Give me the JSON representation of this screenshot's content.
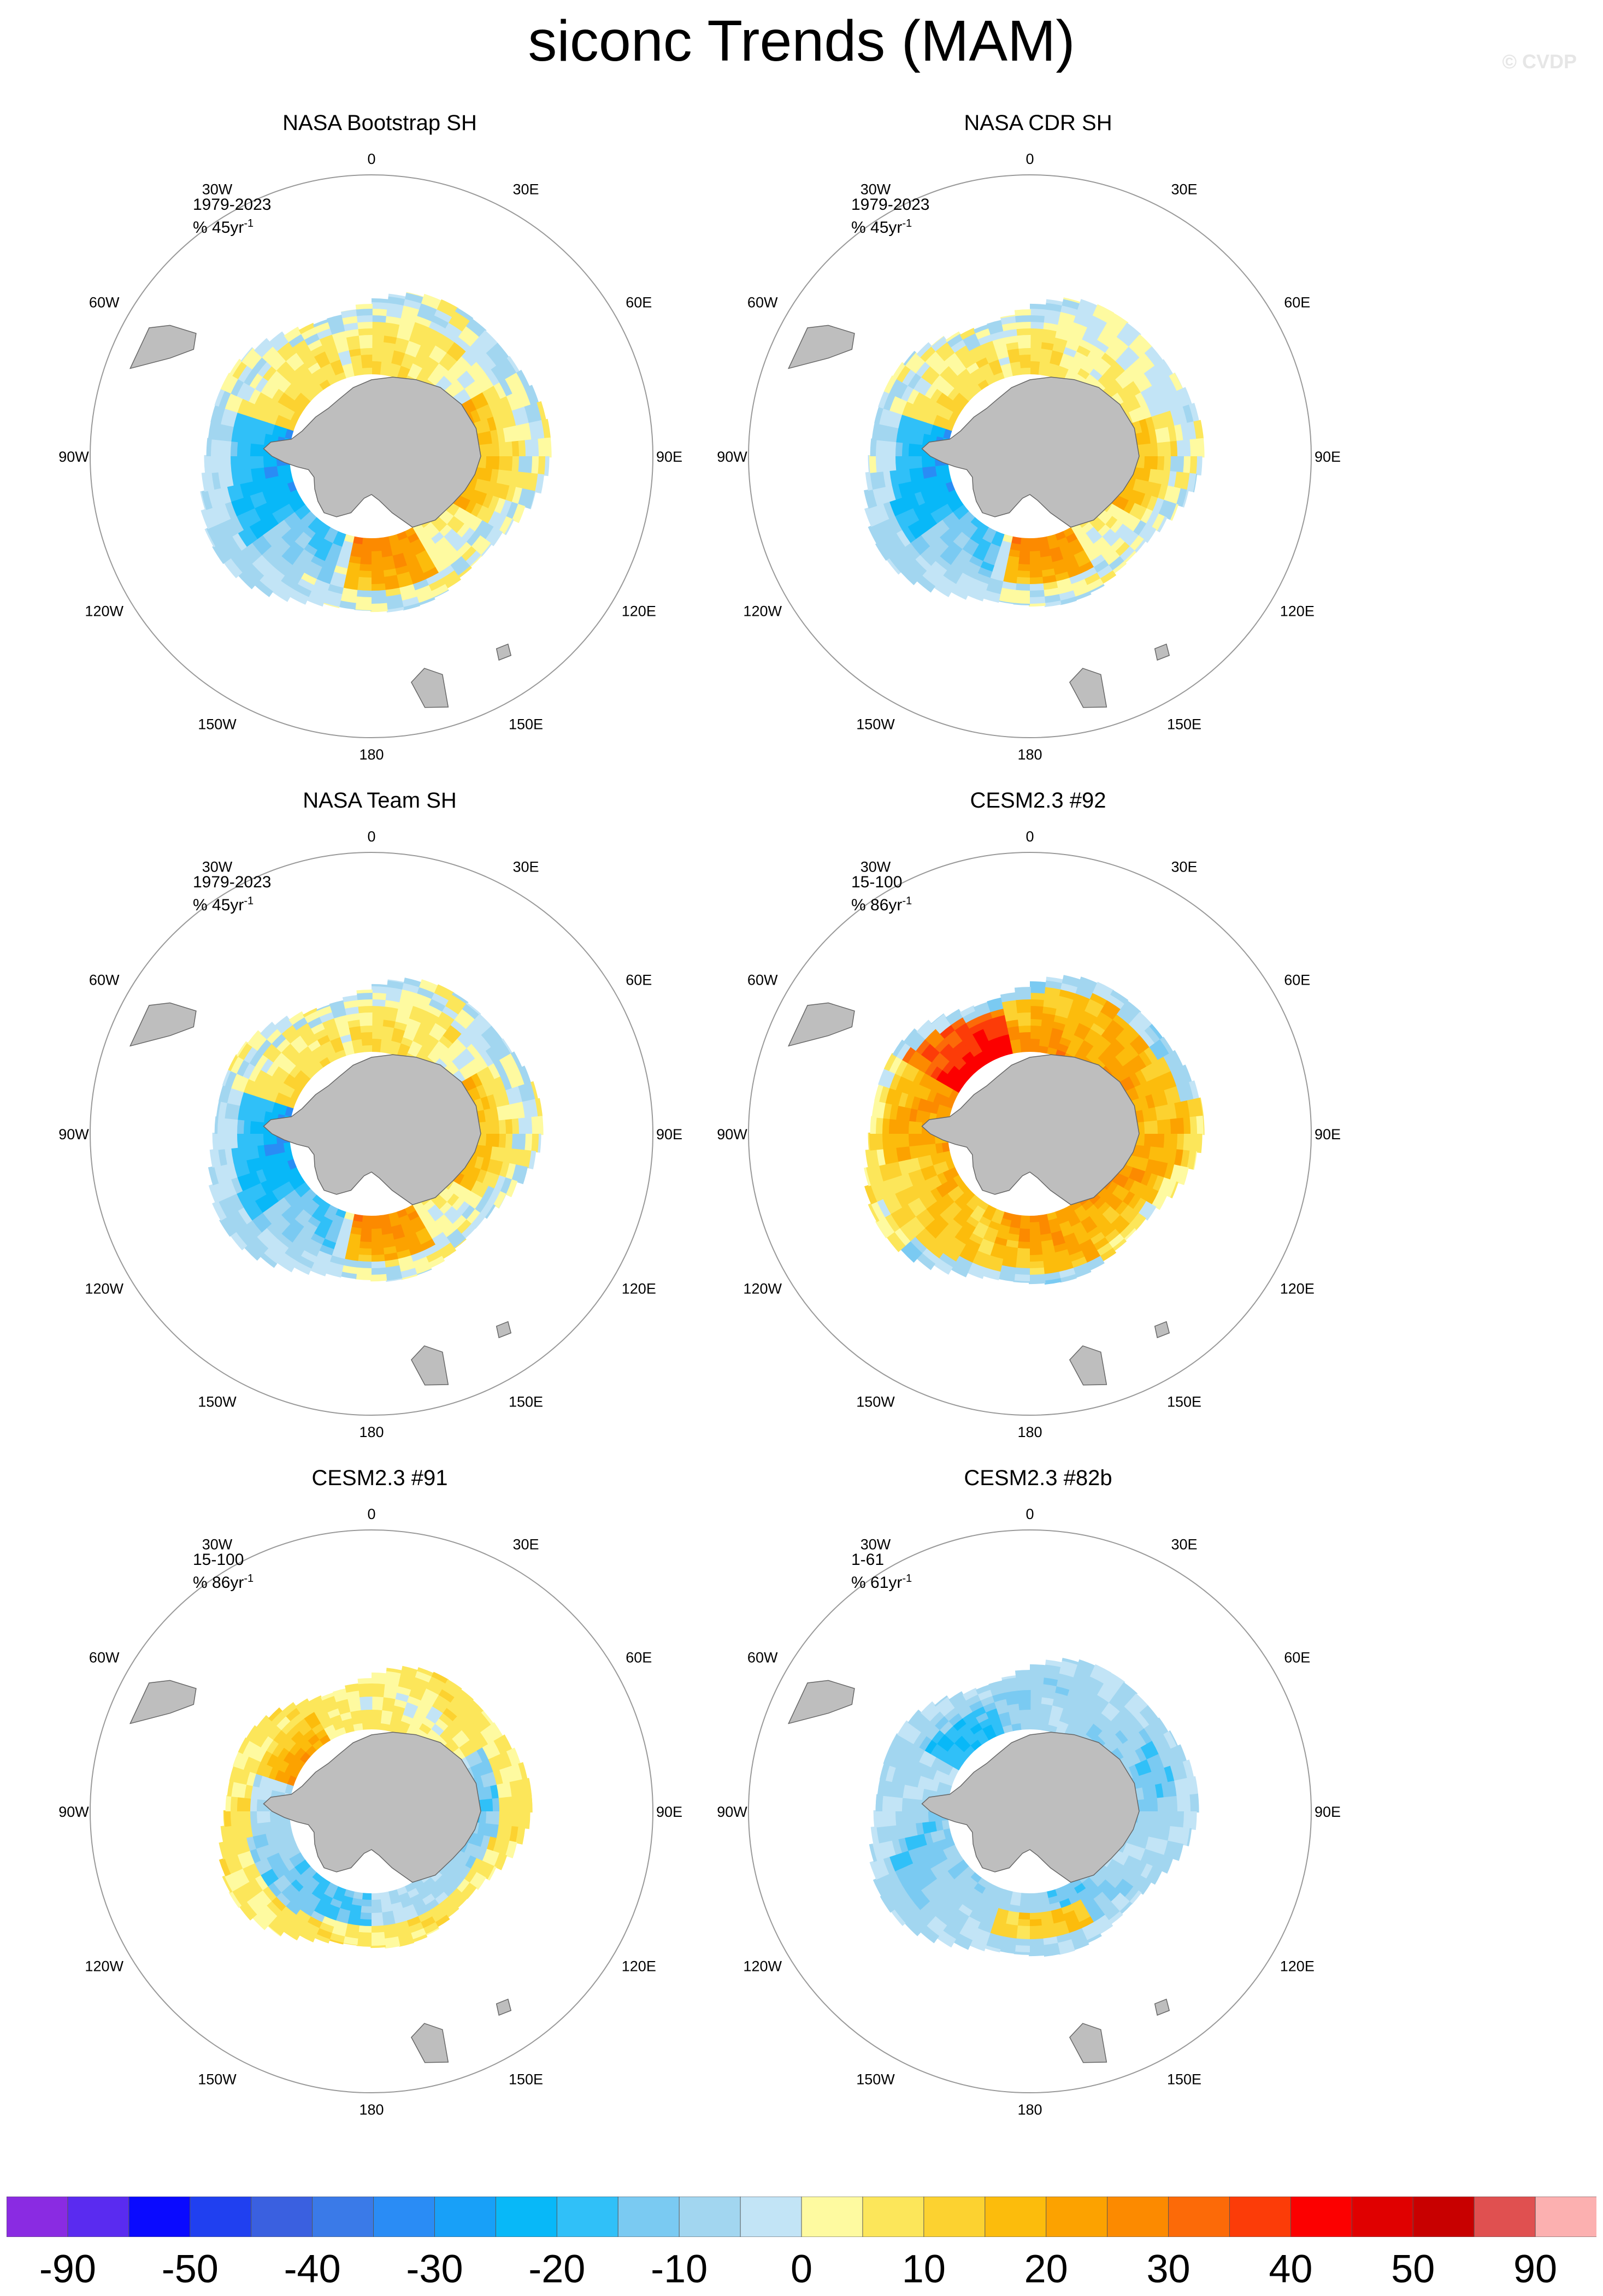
{
  "title": "siconc Trends (MAM)",
  "watermark": "© CVDP",
  "lon_labels": [
    "0",
    "30E",
    "60E",
    "90E",
    "120E",
    "150E",
    "180",
    "150W",
    "120W",
    "90W",
    "60W",
    "30W"
  ],
  "panels": [
    {
      "title": "NASA Bootstrap SH",
      "period": "1979-2023",
      "units": "% 45yr",
      "units_exp": "-1",
      "pattern": "bootstrap"
    },
    {
      "title": "NASA CDR SH",
      "period": "1979-2023",
      "units": "% 45yr",
      "units_exp": "-1",
      "pattern": "cdr"
    },
    {
      "title": "NASA Team SH",
      "period": "1979-2023",
      "units": "% 45yr",
      "units_exp": "-1",
      "pattern": "team"
    },
    {
      "title": "CESM2.3 #92",
      "period": "15-100",
      "units": "% 86yr",
      "units_exp": "-1",
      "pattern": "cesm92"
    },
    {
      "title": "CESM2.3 #91",
      "period": "15-100",
      "units": "% 86yr",
      "units_exp": "-1",
      "pattern": "cesm91"
    },
    {
      "title": "CESM2.3 #82b",
      "period": "1-61",
      "units": "% 61yr",
      "units_exp": "-1",
      "pattern": "cesm82b"
    }
  ],
  "colorbar": {
    "colors": [
      "#8a2be2",
      "#5a2bf0",
      "#0a0aff",
      "#2040f0",
      "#3a60e0",
      "#3a7ae8",
      "#2a8cf5",
      "#18a0f8",
      "#08b8f8",
      "#30c0f8",
      "#7acaf2",
      "#a2d6f0",
      "#c2e4f6",
      "#fefaa0",
      "#fce65a",
      "#fcd230",
      "#fcbc0c",
      "#fca200",
      "#fc8a00",
      "#fc6a08",
      "#fc3c08",
      "#fc0000",
      "#e00000",
      "#c80000",
      "#e05050",
      "#fcb0b0"
    ],
    "labels": [
      "-90",
      "-50",
      "-40",
      "-30",
      "-20",
      "-10",
      "0",
      "10",
      "20",
      "30",
      "40",
      "50",
      "90"
    ]
  },
  "colors": {
    "land": "#bebebe",
    "coast": "#666666",
    "ring": "#999999"
  }
}
